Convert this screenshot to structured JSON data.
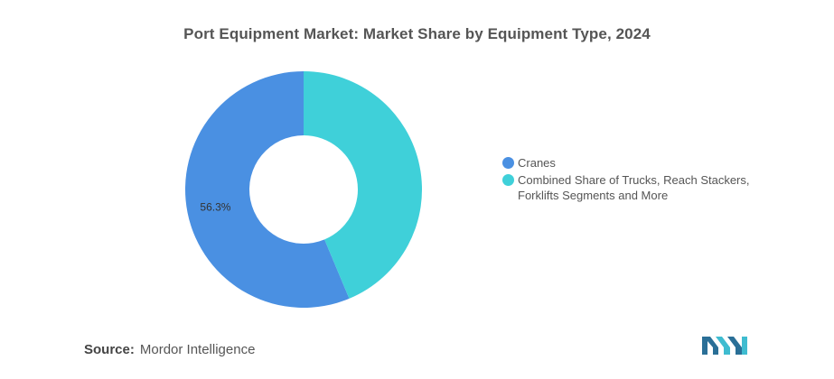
{
  "title": "Port Equipment Market: Market Share by Equipment Type, 2024",
  "chart_data": {
    "type": "pie",
    "variant": "donut",
    "title": "Port Equipment Market: Market Share by Equipment Type, 2024",
    "categories": [
      "Cranes",
      "Combined Share of Trucks, Reach Stackers, Forklifts Segments and More"
    ],
    "values": [
      56.3,
      43.7
    ],
    "colors": [
      "#4a90e2",
      "#3fd0d9"
    ],
    "data_labels": [
      "56.3%",
      ""
    ],
    "legend": {
      "position": "right",
      "entries": [
        "Cranes",
        "Combined Share of Trucks, Reach Stackers, Forklifts Segments and More"
      ]
    }
  },
  "source": {
    "prefix": "Source:",
    "text": "Mordor Intelligence"
  },
  "logo": {
    "icon": "mordor-intelligence-logo-icon",
    "color": "#2a6f97"
  }
}
